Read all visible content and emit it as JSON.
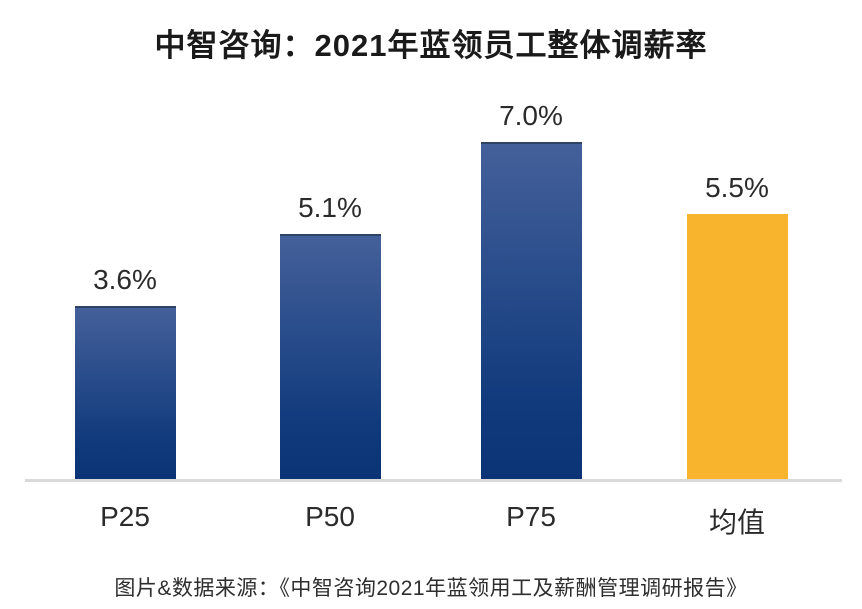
{
  "chart_data": {
    "type": "bar",
    "title": "中智咨询：2021年蓝领员工整体调薪率",
    "categories": [
      "P25",
      "P50",
      "P75",
      "均值"
    ],
    "values": [
      3.6,
      5.1,
      7.0,
      5.5
    ],
    "value_labels": [
      "3.6%",
      "5.1%",
      "7.0%",
      "5.5%"
    ],
    "series": [
      {
        "name": "整体调薪率",
        "values": [
          3.6,
          5.1,
          7.0,
          5.5
        ]
      }
    ],
    "xlabel": "",
    "ylabel": "",
    "ylim": [
      0,
      7.5
    ],
    "grid": false,
    "legend_position": "none",
    "axis_line_color": "#d9d9d9",
    "bar_color_main_top": "#44609a",
    "bar_color_main_bottom": "#0b3476",
    "bar_color_highlight": "#f7b42c",
    "highlight_category": "均值"
  },
  "footer": {
    "source_text": "图片&数据来源：《中智咨询2021年蓝领用工及薪酬管理调研报告》"
  }
}
